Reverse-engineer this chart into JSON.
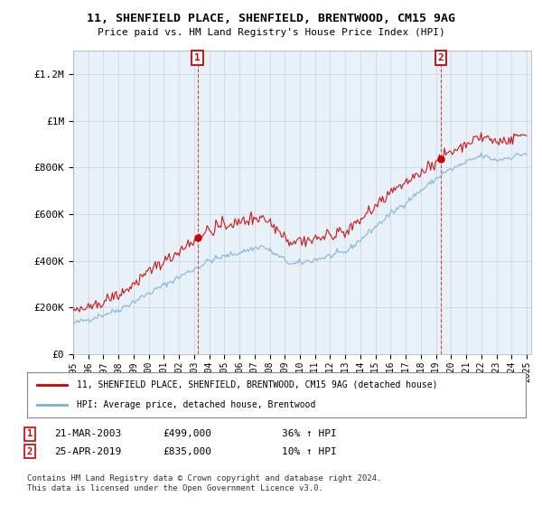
{
  "title": "11, SHENFIELD PLACE, SHENFIELD, BRENTWOOD, CM15 9AG",
  "subtitle": "Price paid vs. HM Land Registry's House Price Index (HPI)",
  "ylim": [
    0,
    1300000
  ],
  "yticks": [
    0,
    200000,
    400000,
    600000,
    800000,
    1000000,
    1200000
  ],
  "ytick_labels": [
    "£0",
    "£200K",
    "£400K",
    "£600K",
    "£800K",
    "£1M",
    "£1.2M"
  ],
  "sale1_year": 2003.22,
  "sale1_price": 499000,
  "sale2_year": 2019.32,
  "sale2_price": 835000,
  "red_color": "#cc0000",
  "blue_color": "#7ab0d4",
  "plot_bg_color": "#e8f0f8",
  "legend_label_red": "11, SHENFIELD PLACE, SHENFIELD, BRENTWOOD, CM15 9AG (detached house)",
  "legend_label_blue": "HPI: Average price, detached house, Brentwood",
  "annotation1_date": "21-MAR-2003",
  "annotation1_price": "£499,000",
  "annotation1_pct": "36% ↑ HPI",
  "annotation2_date": "25-APR-2019",
  "annotation2_price": "£835,000",
  "annotation2_pct": "10% ↑ HPI",
  "footer": "Contains HM Land Registry data © Crown copyright and database right 2024.\nThis data is licensed under the Open Government Licence v3.0.",
  "background_color": "#ffffff",
  "grid_color": "#c8d8e8"
}
